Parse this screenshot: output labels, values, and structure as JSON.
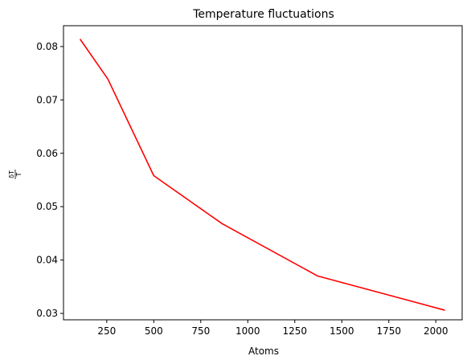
{
  "chart_data": {
    "type": "line",
    "title": "Temperature fluctuations",
    "xlabel": "Atoms",
    "ylabel_numerator": "δT",
    "ylabel_denominator": "T",
    "xlim": [
      20,
      2140
    ],
    "ylim": [
      0.0288,
      0.0839
    ],
    "xticks": [
      250,
      500,
      750,
      1000,
      1250,
      1500,
      1750,
      2000
    ],
    "xtick_labels": [
      "250",
      "500",
      "750",
      "1000",
      "1250",
      "1500",
      "1750",
      "2000"
    ],
    "yticks": [
      0.03,
      0.04,
      0.05,
      0.06,
      0.07,
      0.08
    ],
    "ytick_labels": [
      "0.03",
      "0.04",
      "0.05",
      "0.06",
      "0.07",
      "0.08"
    ],
    "grid": false,
    "series": [
      {
        "color": "#ff0000",
        "x": [
          108,
          256,
          500,
          864,
          1372,
          2048
        ],
        "y": [
          0.0814,
          0.0739,
          0.0558,
          0.0468,
          0.037,
          0.0306
        ]
      }
    ]
  }
}
